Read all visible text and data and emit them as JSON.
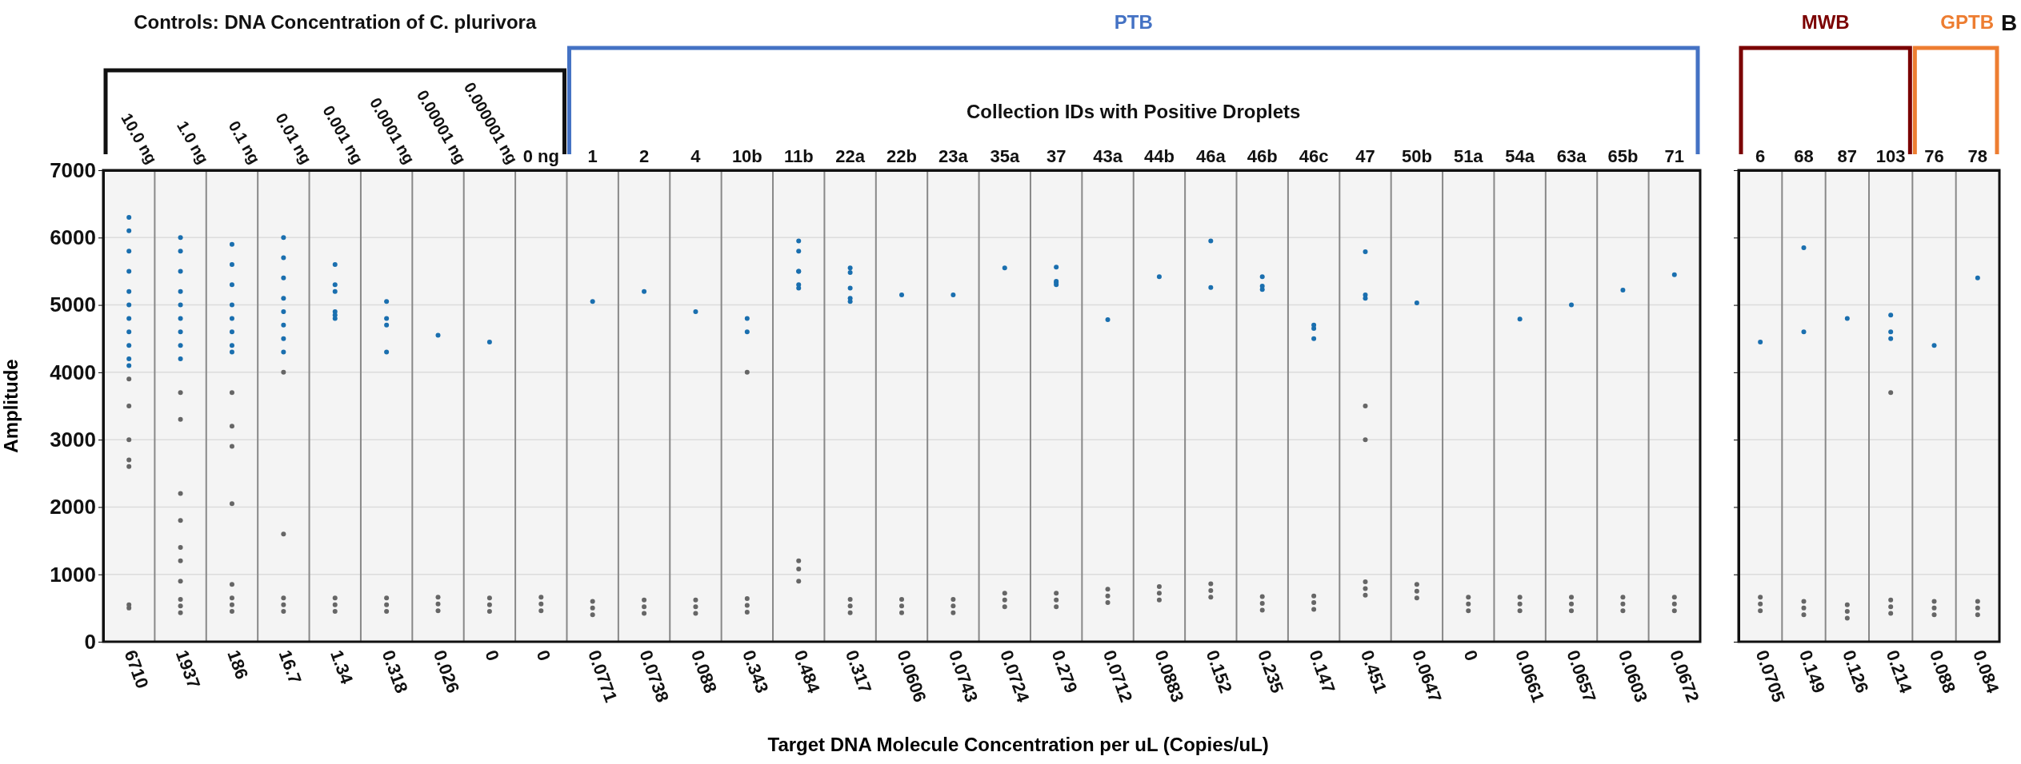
{
  "chart_data": [
    {
      "type": "scatter",
      "ylabel": "Amplitude",
      "xlabel": "Target DNA Molecule Concentration per uL (Copies/uL)",
      "categories": [
        "10.0 ng",
        "1.0 ng",
        "0.1 ng",
        "0.01 ng",
        "0.001 ng",
        "0.0001 ng",
        "0.00001 ng",
        "0.000001 ng",
        "0 ng",
        "1",
        "2",
        "4",
        "10b",
        "11b",
        "22a",
        "22b",
        "23a",
        "35a",
        "37",
        "43a",
        "44b",
        "46a",
        "46b",
        "46c",
        "47",
        "50b",
        "51a",
        "54a",
        "63a",
        "65b",
        "71"
      ],
      "ylim": [
        0,
        7000
      ],
      "yticks": [
        0,
        1000,
        2000,
        3000,
        4000,
        5000,
        6000,
        7000
      ],
      "grid": "y",
      "marker": "circle",
      "series": [
        {
          "color": "#666666",
          "x": [
            "10.0 ng",
            "10.0 ng",
            "10.0 ng",
            "10.0 ng",
            "10.0 ng",
            "10.0 ng",
            "10.0 ng",
            "1.0 ng",
            "1.0 ng",
            "1.0 ng",
            "1.0 ng",
            "1.0 ng",
            "1.0 ng",
            "1.0 ng",
            "1.0 ng",
            "1.0 ng",
            "1.0 ng",
            "0.1 ng",
            "0.1 ng",
            "0.1 ng",
            "0.1 ng",
            "0.1 ng",
            "0.1 ng",
            "0.1 ng",
            "0.1 ng",
            "0.01 ng",
            "0.01 ng",
            "0.01 ng",
            "0.01 ng",
            "0.01 ng",
            "0.001 ng",
            "0.001 ng",
            "0.001 ng",
            "0.0001 ng",
            "0.0001 ng",
            "0.0001 ng",
            "0.00001 ng",
            "0.00001 ng",
            "0.00001 ng",
            "0.000001 ng",
            "0.000001 ng",
            "0.000001 ng",
            "0 ng",
            "0 ng",
            "0 ng",
            "1",
            "1",
            "1",
            "2",
            "2",
            "2",
            "4",
            "4",
            "4",
            "10b",
            "10b",
            "10b",
            "10b",
            "11b",
            "11b",
            "11b",
            "22a",
            "22a",
            "22a",
            "22b",
            "22b",
            "22b",
            "23a",
            "23a",
            "23a",
            "35a",
            "35a",
            "35a",
            "37",
            "37",
            "37",
            "43a",
            "43a",
            "43a",
            "44b",
            "44b",
            "44b",
            "46a",
            "46a",
            "46a",
            "46b",
            "46b",
            "46b",
            "46c",
            "46c",
            "46c",
            "47",
            "47",
            "47",
            "47",
            "47",
            "50b",
            "50b",
            "50b",
            "51a",
            "51a",
            "51a",
            "54a",
            "54a",
            "54a",
            "63a",
            "63a",
            "63a",
            "65b",
            "65b",
            "65b",
            "71",
            "71",
            "71"
          ],
          "values": [
            500,
            550,
            2600,
            2700,
            3000,
            3500,
            3900,
            430,
            530,
            630,
            900,
            1200,
            1400,
            1800,
            2200,
            3300,
            3700,
            450,
            550,
            650,
            850,
            2050,
            2900,
            3200,
            3700,
            450,
            550,
            650,
            1600,
            4000,
            450,
            550,
            650,
            450,
            550,
            650,
            460,
            560,
            660,
            450,
            550,
            650,
            460,
            560,
            660,
            400,
            500,
            600,
            420,
            520,
            620,
            420,
            520,
            620,
            440,
            540,
            640,
            4000,
            900,
            1080,
            1200,
            430,
            530,
            630,
            430,
            530,
            630,
            430,
            530,
            630,
            520,
            620,
            720,
            520,
            620,
            720,
            580,
            680,
            780,
            620,
            720,
            820,
            660,
            760,
            860,
            470,
            570,
            670,
            480,
            580,
            680,
            690,
            790,
            890,
            3000,
            3500,
            650,
            750,
            850,
            460,
            560,
            660,
            460,
            560,
            660,
            460,
            560,
            660,
            460,
            560,
            660,
            460,
            560,
            660
          ]
        },
        {
          "color": "#1a6faf",
          "x": [
            "10.0 ng",
            "10.0 ng",
            "10.0 ng",
            "10.0 ng",
            "10.0 ng",
            "10.0 ng",
            "10.0 ng",
            "10.0 ng",
            "10.0 ng",
            "10.0 ng",
            "10.0 ng",
            "1.0 ng",
            "1.0 ng",
            "1.0 ng",
            "1.0 ng",
            "1.0 ng",
            "1.0 ng",
            "1.0 ng",
            "1.0 ng",
            "1.0 ng",
            "0.1 ng",
            "0.1 ng",
            "0.1 ng",
            "0.1 ng",
            "0.1 ng",
            "0.1 ng",
            "0.1 ng",
            "0.1 ng",
            "0.01 ng",
            "0.01 ng",
            "0.01 ng",
            "0.01 ng",
            "0.01 ng",
            "0.01 ng",
            "0.01 ng",
            "0.01 ng",
            "0.001 ng",
            "0.001 ng",
            "0.001 ng",
            "0.001 ng",
            "0.001 ng",
            "0.001 ng",
            "0.0001 ng",
            "0.0001 ng",
            "0.0001 ng",
            "0.0001 ng",
            "0.00001 ng",
            "0.000001 ng",
            "1",
            "2",
            "4",
            "10b",
            "10b",
            "11b",
            "11b",
            "11b",
            "11b",
            "11b",
            "11b",
            "22a",
            "22a",
            "22a",
            "22a",
            "22a",
            "22b",
            "23a",
            "35a",
            "37",
            "37",
            "37",
            "37",
            "43a",
            "44b",
            "46a",
            "46a",
            "46b",
            "46b",
            "46b",
            "46c",
            "46c",
            "46c",
            "47",
            "47",
            "47",
            "50b",
            "54a",
            "63a",
            "65b",
            "71"
          ],
          "values": [
            6300,
            6100,
            5800,
            5500,
            5200,
            5000,
            4800,
            4600,
            4400,
            4200,
            4100,
            6000,
            5800,
            5500,
            5200,
            5000,
            4800,
            4600,
            4400,
            4200,
            5900,
            5600,
            5300,
            5000,
            4800,
            4600,
            4400,
            4300,
            6000,
            5700,
            5400,
            5100,
            4900,
            4700,
            4500,
            4300,
            5600,
            5300,
            5200,
            4900,
            4850,
            4800,
            5050,
            4800,
            4700,
            4300,
            4550,
            4450,
            5050,
            5200,
            4900,
            4800,
            4600,
            5950,
            5800,
            5500,
            5500,
            5250,
            5300,
            5050,
            5250,
            5100,
            5550,
            5480,
            5150,
            5150,
            5550,
            5560,
            5300,
            5350,
            5330,
            4780,
            5420,
            5950,
            5260,
            5420,
            5230,
            5280,
            4700,
            4650,
            4500,
            5790,
            5100,
            5150,
            5030,
            4790,
            5000,
            5220,
            5450
          ]
        }
      ],
      "annotations": [
        "Controls: DNA Concentration of C. plurivora",
        "PTB",
        "Collection IDs with Positive Droplets",
        "6710",
        "1937",
        "186",
        "16.7",
        "1.34",
        "0.318",
        "0.026",
        "0",
        "0",
        "0.0771",
        "0.0738",
        "0.088",
        "0.343",
        "0.484",
        "0.317",
        "0.0606",
        "0.0743",
        "0.0724",
        "0.279",
        "0.0712",
        "0.0883",
        "0.152",
        "0.235",
        "0.147",
        "0.451",
        "0.0647",
        "0",
        "0.0661",
        "0.0657",
        "0.0603",
        "0.0672"
      ]
    },
    {
      "type": "scatter",
      "categories": [
        "6",
        "68",
        "87",
        "103",
        "76",
        "78"
      ],
      "ylim": [
        0,
        7000
      ],
      "yticks": [
        0,
        1000,
        2000,
        3000,
        4000,
        5000,
        6000,
        7000
      ],
      "grid": "y",
      "marker": "circle",
      "tick_labels": "x",
      "series": [
        {
          "color": "#666666",
          "x": [
            "6",
            "6",
            "6",
            "68",
            "68",
            "68",
            "87",
            "87",
            "87",
            "103",
            "103",
            "103",
            "103",
            "76",
            "76",
            "76",
            "78",
            "78",
            "78"
          ],
          "values": [
            460,
            560,
            660,
            400,
            500,
            600,
            350,
            450,
            550,
            420,
            520,
            620,
            3700,
            400,
            500,
            600,
            400,
            500,
            600
          ]
        },
        {
          "color": "#1a6faf",
          "x": [
            "6",
            "68",
            "68",
            "87",
            "103",
            "103",
            "103",
            "76",
            "78"
          ],
          "values": [
            4450,
            5850,
            4600,
            4800,
            4850,
            4600,
            4500,
            4400,
            5400
          ]
        }
      ],
      "annotations": [
        "MWB",
        "GPTB",
        "B",
        "0.0705",
        "0.149",
        "0.126",
        "0.214",
        "0.088",
        "0.084"
      ]
    }
  ]
}
